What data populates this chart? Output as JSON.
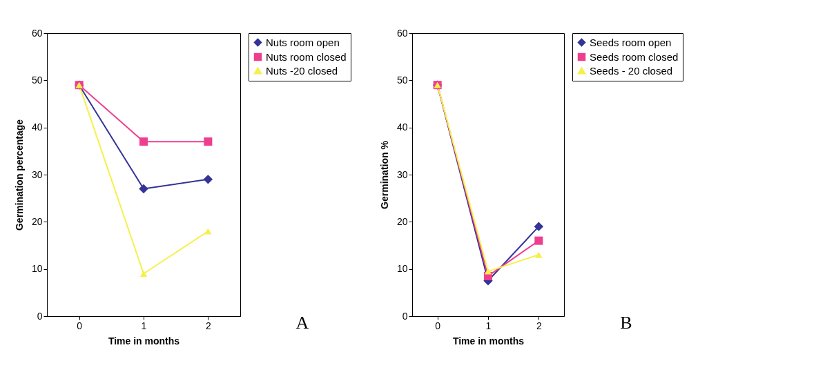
{
  "chart_data": [
    {
      "type": "line",
      "categories": [
        "0",
        "1",
        "2"
      ],
      "xlabel": "Time in months",
      "ylabel": "Germination percentage",
      "ylim": [
        0,
        60
      ],
      "yticks": [
        0,
        10,
        20,
        30,
        40,
        50,
        60
      ],
      "grid": false,
      "legend": "right",
      "annotations": [
        "A"
      ],
      "series": [
        {
          "name": "Nuts room open",
          "color": "#333399",
          "marker": "diamond",
          "values": [
            49,
            27,
            29
          ]
        },
        {
          "name": "Nuts room closed",
          "color": "#ee3f8f",
          "marker": "square",
          "values": [
            49,
            37,
            37
          ]
        },
        {
          "name": "Nuts -20 closed",
          "color": "#f5f04a",
          "marker": "triangle",
          "values": [
            49,
            9,
            18
          ]
        }
      ]
    },
    {
      "type": "line",
      "categories": [
        "0",
        "1",
        "2"
      ],
      "xlabel": "Time in months",
      "ylabel": "Germination %",
      "ylim": [
        0,
        60
      ],
      "yticks": [
        0,
        10,
        20,
        30,
        40,
        50,
        60
      ],
      "grid": false,
      "legend": "right",
      "annotations": [
        "B"
      ],
      "series": [
        {
          "name": "Seeds room open",
          "color": "#333399",
          "marker": "diamond",
          "values": [
            49,
            7.5,
            19
          ]
        },
        {
          "name": "Seeds room closed",
          "color": "#ee3f8f",
          "marker": "square",
          "values": [
            49,
            8.5,
            16
          ]
        },
        {
          "name": "Seeds - 20 closed",
          "color": "#f5f04a",
          "marker": "triangle",
          "values": [
            49,
            9.5,
            13
          ]
        }
      ]
    }
  ]
}
